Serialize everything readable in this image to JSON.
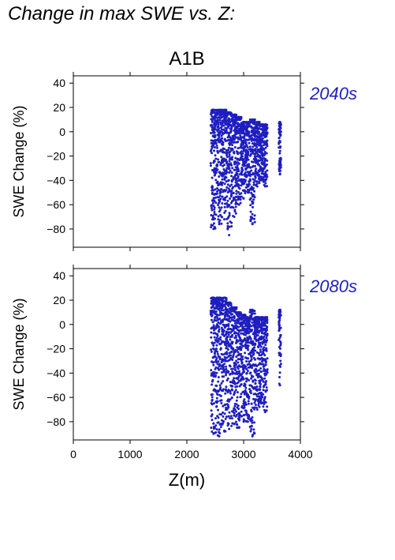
{
  "figure_title": "Change in max SWE vs. Z:",
  "scenario": "A1B",
  "colors": {
    "points": "#1f1fbf",
    "period_label": "#1f1fbf",
    "axis": "#000000"
  },
  "chart_data": [
    {
      "type": "scatter",
      "title": "A1B",
      "period_label": "2040s",
      "ylabel": "SWE Change (%)",
      "xlabel": "",
      "xlim": [
        0,
        4000
      ],
      "ylim": [
        -95,
        46
      ],
      "yticks": [
        -80,
        -60,
        -40,
        -20,
        0,
        20,
        40
      ],
      "ytick_labels": [
        "−80",
        "−60",
        "−40",
        "−20",
        "0",
        "20",
        "40"
      ],
      "xticks": [
        0,
        1000,
        2000,
        3000,
        4000
      ],
      "xtick_labels": [],
      "elevation_bands": [
        {
          "z_min": 2420,
          "z_max": 2520,
          "y_min": -80,
          "y_max": 18
        },
        {
          "z_min": 2520,
          "z_max": 2620,
          "y_min": -76,
          "y_max": 18
        },
        {
          "z_min": 2620,
          "z_max": 2700,
          "y_min": -72,
          "y_max": 18
        },
        {
          "z_min": 2700,
          "z_max": 2790,
          "y_min": -85,
          "y_max": 16
        },
        {
          "z_min": 2790,
          "z_max": 2880,
          "y_min": -70,
          "y_max": 14
        },
        {
          "z_min": 2880,
          "z_max": 2960,
          "y_min": -60,
          "y_max": 12
        },
        {
          "z_min": 2960,
          "z_max": 3040,
          "y_min": -55,
          "y_max": 8
        },
        {
          "z_min": 3040,
          "z_max": 3110,
          "y_min": -50,
          "y_max": 8
        },
        {
          "z_min": 3110,
          "z_max": 3200,
          "y_min": -76,
          "y_max": 10
        },
        {
          "z_min": 3200,
          "z_max": 3280,
          "y_min": -45,
          "y_max": 8
        },
        {
          "z_min": 3280,
          "z_max": 3340,
          "y_min": -40,
          "y_max": 6
        },
        {
          "z_min": 3340,
          "z_max": 3420,
          "y_min": -45,
          "y_max": 6
        },
        {
          "z_min": 3620,
          "z_max": 3660,
          "y_min": -35,
          "y_max": 8
        }
      ]
    },
    {
      "type": "scatter",
      "title": "",
      "period_label": "2080s",
      "ylabel": "SWE Change (%)",
      "xlabel": "Z(m)",
      "xlim": [
        0,
        4000
      ],
      "ylim": [
        -95,
        46
      ],
      "yticks": [
        -80,
        -60,
        -40,
        -20,
        0,
        20,
        40
      ],
      "ytick_labels": [
        "−80",
        "−60",
        "−40",
        "−20",
        "0",
        "20",
        "40"
      ],
      "xticks": [
        0,
        1000,
        2000,
        3000,
        4000
      ],
      "xtick_labels": [
        "0",
        "1000",
        "2000",
        "3000",
        "4000"
      ],
      "elevation_bands": [
        {
          "z_min": 2420,
          "z_max": 2520,
          "y_min": -90,
          "y_max": 22
        },
        {
          "z_min": 2520,
          "z_max": 2620,
          "y_min": -92,
          "y_max": 22
        },
        {
          "z_min": 2620,
          "z_max": 2700,
          "y_min": -88,
          "y_max": 22
        },
        {
          "z_min": 2700,
          "z_max": 2790,
          "y_min": -86,
          "y_max": 18
        },
        {
          "z_min": 2790,
          "z_max": 2880,
          "y_min": -82,
          "y_max": 14
        },
        {
          "z_min": 2880,
          "z_max": 2960,
          "y_min": -85,
          "y_max": 10
        },
        {
          "z_min": 2960,
          "z_max": 3040,
          "y_min": -80,
          "y_max": 8
        },
        {
          "z_min": 3040,
          "z_max": 3110,
          "y_min": -80,
          "y_max": 6
        },
        {
          "z_min": 3110,
          "z_max": 3200,
          "y_min": -92,
          "y_max": 12
        },
        {
          "z_min": 3200,
          "z_max": 3280,
          "y_min": -70,
          "y_max": 6
        },
        {
          "z_min": 3280,
          "z_max": 3340,
          "y_min": -65,
          "y_max": 6
        },
        {
          "z_min": 3340,
          "z_max": 3420,
          "y_min": -72,
          "y_max": 6
        },
        {
          "z_min": 3620,
          "z_max": 3660,
          "y_min": -50,
          "y_max": 12
        }
      ]
    }
  ]
}
